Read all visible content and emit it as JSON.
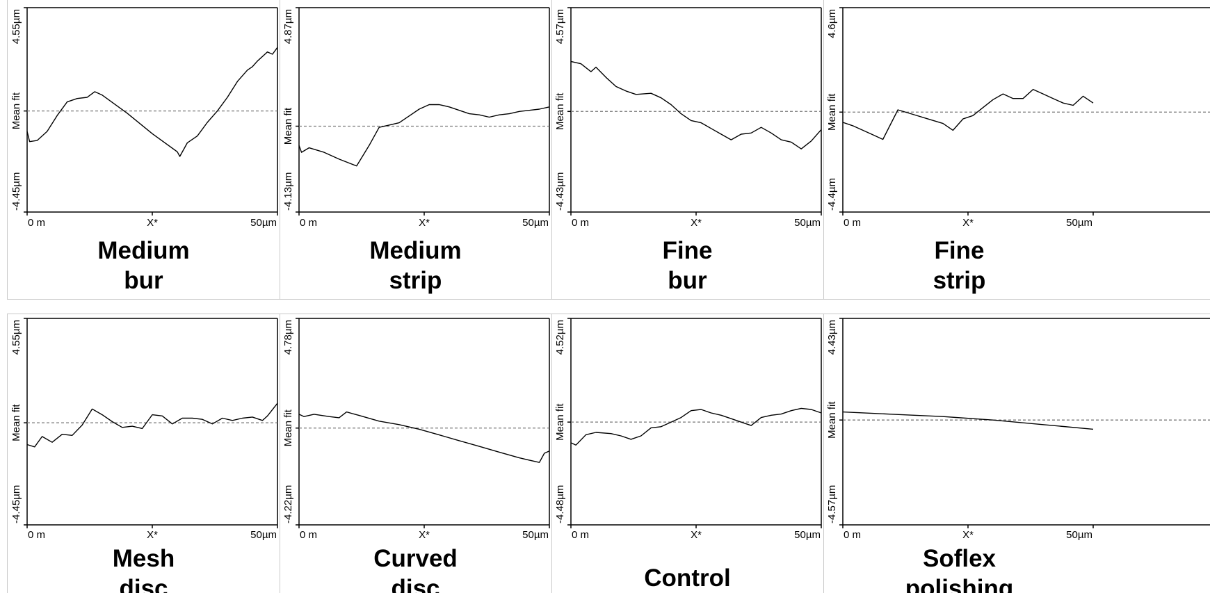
{
  "chart_data": [
    {
      "type": "line",
      "caption_line1": "Medium",
      "caption_line2": "bur",
      "ytop": "4.55µm",
      "ybottom": "-4.45µm",
      "ymid": "Mean fit",
      "xleft": "0 m",
      "xmid": "X*",
      "xright": "50µm",
      "mean_fit": 0.0,
      "ylim": [
        -4.45,
        4.55
      ],
      "xlim": [
        0,
        50
      ],
      "points": [
        [
          0,
          -0.9
        ],
        [
          0.5,
          -1.35
        ],
        [
          2,
          -1.3
        ],
        [
          4,
          -0.9
        ],
        [
          6,
          -0.2
        ],
        [
          8,
          0.4
        ],
        [
          10,
          0.55
        ],
        [
          12,
          0.6
        ],
        [
          13.5,
          0.85
        ],
        [
          15,
          0.7
        ],
        [
          20,
          -0.1
        ],
        [
          25,
          -1.0
        ],
        [
          30,
          -1.8
        ],
        [
          30.5,
          -2.0
        ],
        [
          32,
          -1.4
        ],
        [
          34,
          -1.1
        ],
        [
          36,
          -0.5
        ],
        [
          38,
          0.0
        ],
        [
          40,
          0.6
        ],
        [
          42,
          1.3
        ],
        [
          44,
          1.8
        ],
        [
          45,
          1.95
        ],
        [
          46,
          2.2
        ],
        [
          48,
          2.6
        ],
        [
          49,
          2.5
        ],
        [
          50,
          2.8
        ]
      ]
    },
    {
      "type": "line",
      "caption_line1": "Medium",
      "caption_line2": "strip",
      "ytop": "4.87µm",
      "ybottom": "-4.13µm",
      "ymid": "Mean fit",
      "xleft": "0 m",
      "xmid": "X*",
      "xright": "50µm",
      "mean_fit": -0.35,
      "ylim": [
        -4.13,
        4.87
      ],
      "xlim": [
        0,
        50
      ],
      "points": [
        [
          0,
          -1.2
        ],
        [
          0.5,
          -1.5
        ],
        [
          2,
          -1.3
        ],
        [
          5,
          -1.5
        ],
        [
          8,
          -1.8
        ],
        [
          11.5,
          -2.1
        ],
        [
          14,
          -1.2
        ],
        [
          16,
          -0.4
        ],
        [
          18,
          -0.3
        ],
        [
          20,
          -0.2
        ],
        [
          22,
          0.1
        ],
        [
          24,
          0.4
        ],
        [
          26,
          0.6
        ],
        [
          28,
          0.6
        ],
        [
          30,
          0.5
        ],
        [
          32,
          0.35
        ],
        [
          34,
          0.2
        ],
        [
          36,
          0.15
        ],
        [
          38,
          0.05
        ],
        [
          40,
          0.15
        ],
        [
          42,
          0.2
        ],
        [
          44,
          0.3
        ],
        [
          46,
          0.35
        ],
        [
          48,
          0.4
        ],
        [
          50,
          0.5
        ]
      ]
    },
    {
      "type": "line",
      "caption_line1": "Fine",
      "caption_line2": "bur",
      "ytop": "4.57µm",
      "ybottom": "-4.43µm",
      "ymid": "Mean fit",
      "xleft": "0 m",
      "xmid": "X*",
      "xright": "50µm",
      "mean_fit": 0.0,
      "ylim": [
        -4.43,
        4.57
      ],
      "xlim": [
        0,
        50
      ],
      "points": [
        [
          0,
          2.2
        ],
        [
          2,
          2.1
        ],
        [
          4,
          1.75
        ],
        [
          5,
          1.95
        ],
        [
          7,
          1.5
        ],
        [
          9,
          1.1
        ],
        [
          11,
          0.9
        ],
        [
          13,
          0.75
        ],
        [
          16,
          0.8
        ],
        [
          18,
          0.6
        ],
        [
          20,
          0.3
        ],
        [
          22,
          -0.1
        ],
        [
          24,
          -0.4
        ],
        [
          26,
          -0.5
        ],
        [
          28,
          -0.75
        ],
        [
          30,
          -1.0
        ],
        [
          32,
          -1.25
        ],
        [
          34,
          -1.0
        ],
        [
          36,
          -0.95
        ],
        [
          38,
          -0.7
        ],
        [
          40,
          -0.95
        ],
        [
          42,
          -1.25
        ],
        [
          44,
          -1.35
        ],
        [
          46,
          -1.65
        ],
        [
          48,
          -1.3
        ],
        [
          50,
          -0.8
        ]
      ]
    },
    {
      "type": "line",
      "caption_line1": "Fine",
      "caption_line2": "strip",
      "ytop": "4.6µm",
      "ybottom": "-4.4µm",
      "ymid": "Mean fit",
      "xleft": "0 m",
      "xmid": "X*",
      "xright": "50µm",
      "mean_fit": 0.0,
      "ylim": [
        -4.4,
        4.6
      ],
      "xlim": [
        0,
        50
      ],
      "points": [
        [
          0,
          -0.45
        ],
        [
          2,
          -0.6
        ],
        [
          4,
          -0.8
        ],
        [
          6,
          -1.0
        ],
        [
          8,
          -1.2
        ],
        [
          11,
          0.1
        ],
        [
          14,
          -0.1
        ],
        [
          17,
          -0.3
        ],
        [
          20,
          -0.5
        ],
        [
          22,
          -0.8
        ],
        [
          24,
          -0.3
        ],
        [
          26,
          -0.15
        ],
        [
          28,
          0.2
        ],
        [
          30,
          0.55
        ],
        [
          32,
          0.8
        ],
        [
          34,
          0.6
        ],
        [
          36,
          0.6
        ],
        [
          38,
          1.0
        ],
        [
          40,
          0.8
        ],
        [
          42,
          0.6
        ],
        [
          44,
          0.4
        ],
        [
          46,
          0.3
        ],
        [
          48,
          0.7
        ],
        [
          50,
          0.4
        ]
      ]
    },
    {
      "type": "line",
      "caption_line1": "Mesh",
      "caption_line2": "disc",
      "ytop": "4.55µm",
      "ybottom": "-4.45µm",
      "ymid": "Mean fit",
      "xleft": "0 m",
      "xmid": "X*",
      "xright": "50µm",
      "mean_fit": 0.0,
      "ylim": [
        -4.45,
        4.55
      ],
      "xlim": [
        0,
        50
      ],
      "points": [
        [
          0,
          -0.95
        ],
        [
          1.5,
          -1.05
        ],
        [
          3,
          -0.6
        ],
        [
          5,
          -0.85
        ],
        [
          7,
          -0.5
        ],
        [
          9,
          -0.55
        ],
        [
          11,
          -0.1
        ],
        [
          13,
          0.6
        ],
        [
          15,
          0.35
        ],
        [
          17,
          0.05
        ],
        [
          19,
          -0.2
        ],
        [
          21,
          -0.15
        ],
        [
          23,
          -0.25
        ],
        [
          25,
          0.35
        ],
        [
          27,
          0.3
        ],
        [
          29,
          -0.05
        ],
        [
          31,
          0.2
        ],
        [
          33,
          0.2
        ],
        [
          35,
          0.15
        ],
        [
          37,
          -0.05
        ],
        [
          39,
          0.2
        ],
        [
          41,
          0.1
        ],
        [
          43,
          0.2
        ],
        [
          45,
          0.25
        ],
        [
          47,
          0.1
        ],
        [
          48,
          0.3
        ],
        [
          50,
          0.85
        ]
      ]
    },
    {
      "type": "line",
      "caption_line1": "Curved",
      "caption_line2": "disc",
      "ytop": "4.78µm",
      "ybottom": "-4.22µm",
      "ymid": "Mean fit",
      "xleft": "0 m",
      "xmid": "X*",
      "xright": "50µm",
      "mean_fit": 0.0,
      "ylim": [
        -4.22,
        4.78
      ],
      "xlim": [
        0,
        50
      ],
      "points": [
        [
          0,
          0.6
        ],
        [
          1,
          0.5
        ],
        [
          3,
          0.6
        ],
        [
          6,
          0.5
        ],
        [
          8,
          0.45
        ],
        [
          9.5,
          0.7
        ],
        [
          12,
          0.55
        ],
        [
          16,
          0.3
        ],
        [
          20,
          0.15
        ],
        [
          24,
          -0.05
        ],
        [
          28,
          -0.3
        ],
        [
          32,
          -0.55
        ],
        [
          36,
          -0.8
        ],
        [
          40,
          -1.05
        ],
        [
          44,
          -1.3
        ],
        [
          47,
          -1.45
        ],
        [
          48,
          -1.5
        ],
        [
          49,
          -1.1
        ],
        [
          50,
          -1.0
        ]
      ]
    },
    {
      "type": "line",
      "caption_line1": "Control",
      "caption_line2": "",
      "ytop": "4.52µm",
      "ybottom": "-4.48µm",
      "ymid": "Mean fit",
      "xleft": "0 m",
      "xmid": "X*",
      "xright": "50µm",
      "mean_fit": 0.0,
      "ylim": [
        -4.48,
        4.52
      ],
      "xlim": [
        0,
        50
      ],
      "points": [
        [
          0,
          -0.9
        ],
        [
          1,
          -1.0
        ],
        [
          3,
          -0.55
        ],
        [
          5,
          -0.45
        ],
        [
          8,
          -0.5
        ],
        [
          10,
          -0.6
        ],
        [
          12,
          -0.75
        ],
        [
          14,
          -0.6
        ],
        [
          16,
          -0.25
        ],
        [
          18,
          -0.2
        ],
        [
          20,
          0.0
        ],
        [
          22,
          0.2
        ],
        [
          24,
          0.5
        ],
        [
          26,
          0.55
        ],
        [
          28,
          0.4
        ],
        [
          30,
          0.3
        ],
        [
          32,
          0.15
        ],
        [
          34,
          0.0
        ],
        [
          36,
          -0.15
        ],
        [
          38,
          0.2
        ],
        [
          40,
          0.3
        ],
        [
          42,
          0.35
        ],
        [
          44,
          0.5
        ],
        [
          46,
          0.6
        ],
        [
          48,
          0.55
        ],
        [
          50,
          0.4
        ]
      ]
    },
    {
      "type": "line",
      "caption_line1": "Soflex",
      "caption_line2": "polishing",
      "ytop": "4.43µm",
      "ybottom": "-4.57µm",
      "ymid": "Mean fit",
      "xleft": "0 m",
      "xmid": "X*",
      "xright": "50µm",
      "mean_fit": 0.0,
      "ylim": [
        -4.57,
        4.43
      ],
      "xlim": [
        0,
        50
      ],
      "points": [
        [
          0,
          0.35
        ],
        [
          10,
          0.25
        ],
        [
          20,
          0.15
        ],
        [
          30,
          0.0
        ],
        [
          40,
          -0.2
        ],
        [
          50,
          -0.4
        ]
      ]
    }
  ]
}
